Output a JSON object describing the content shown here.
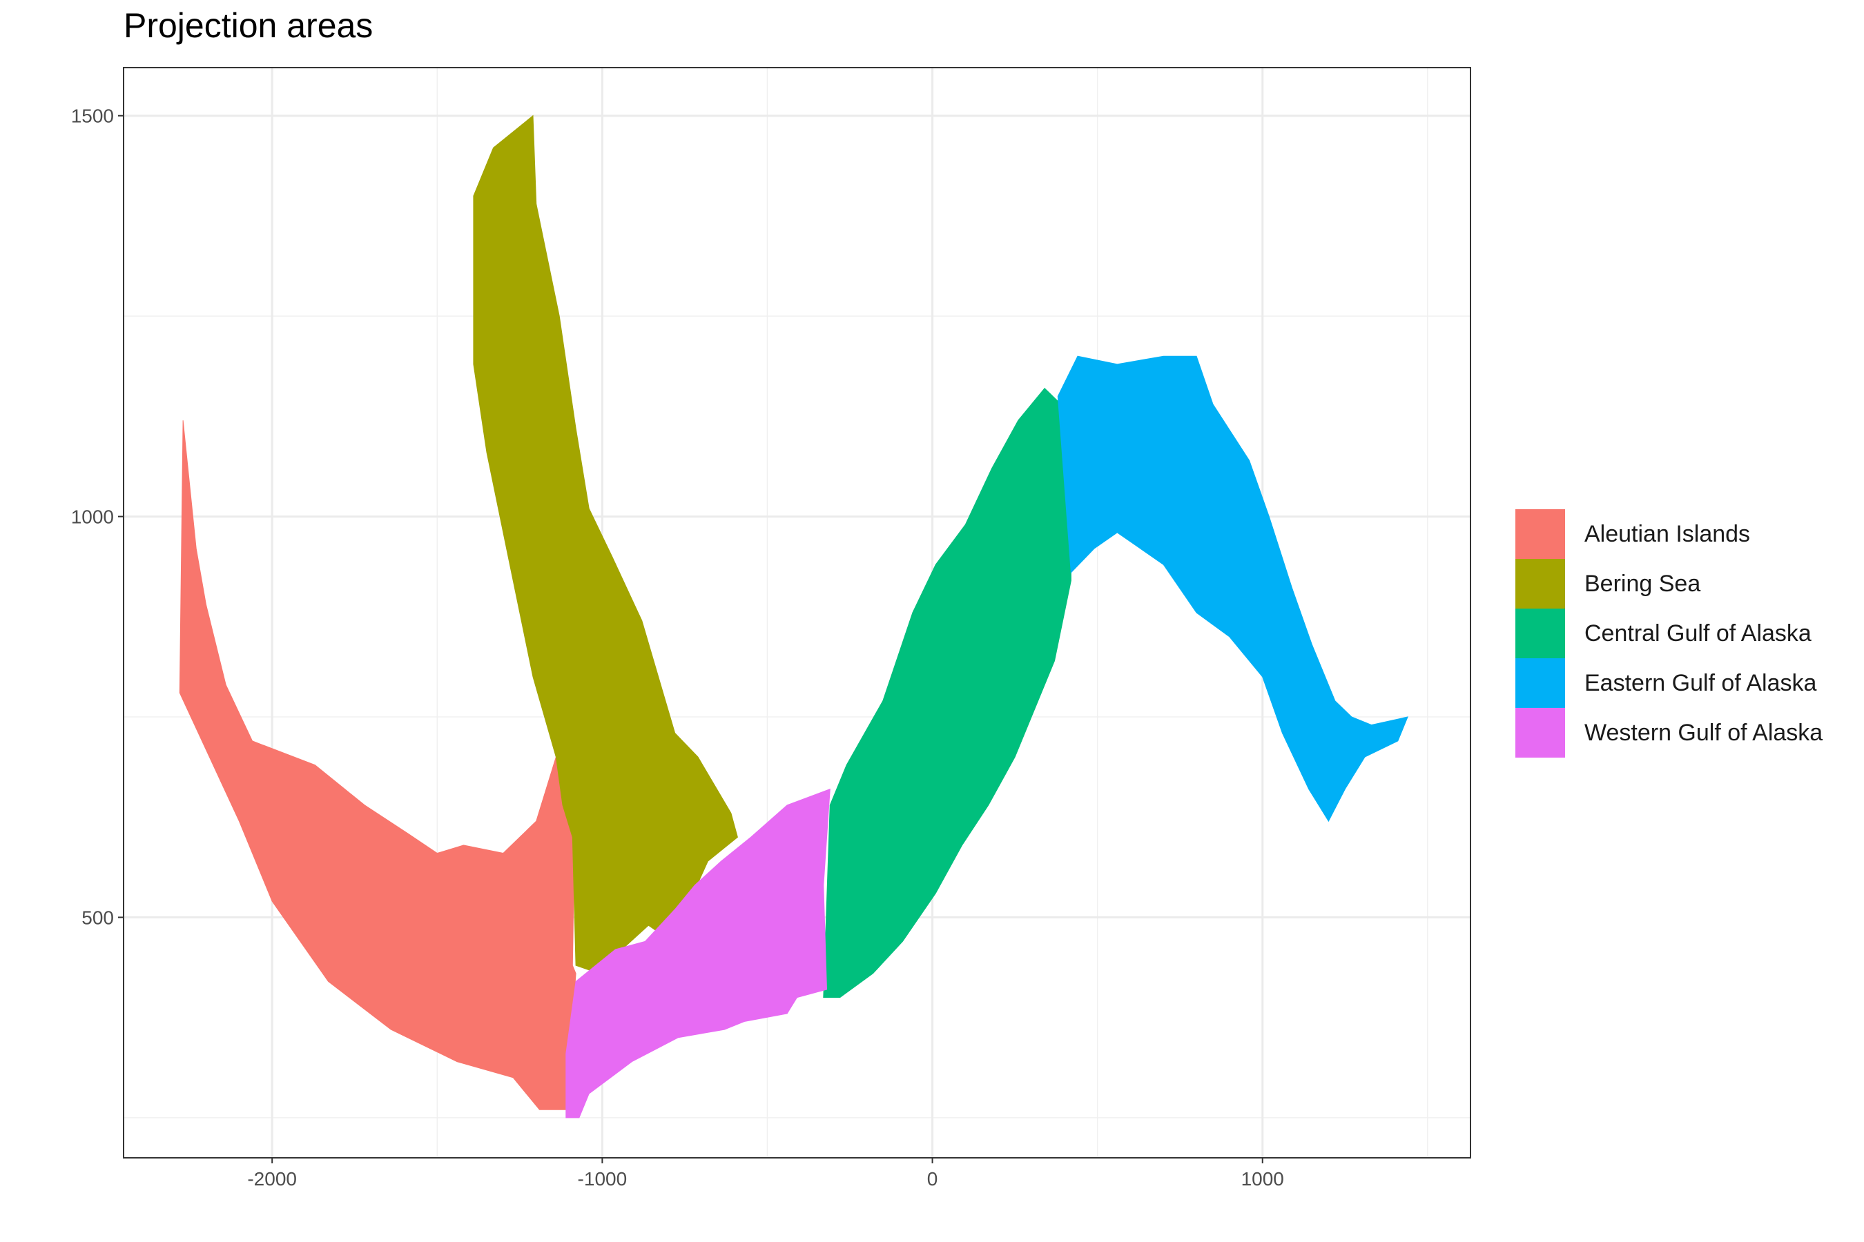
{
  "chart_data": {
    "type": "area",
    "title": "Projection areas",
    "xlabel": "",
    "ylabel": "",
    "xlim": [
      -2450,
      1630
    ],
    "ylim": [
      200,
      1560
    ],
    "x_ticks": [
      -2000,
      -1000,
      0,
      1000
    ],
    "x_tick_labels": [
      "-2000",
      "-1000",
      "0",
      "1000"
    ],
    "y_ticks": [
      500,
      1000,
      1500
    ],
    "y_tick_labels": [
      "500",
      "1000",
      "1500"
    ],
    "grid": true,
    "legend_position": "right",
    "series": [
      {
        "name": "Aleutian Islands",
        "color": "#F8766D",
        "polygon": [
          [
            -2270,
            1120
          ],
          [
            -2230,
            960
          ],
          [
            -2200,
            890
          ],
          [
            -2140,
            790
          ],
          [
            -2060,
            720
          ],
          [
            -1870,
            690
          ],
          [
            -1720,
            640
          ],
          [
            -1590,
            605
          ],
          [
            -1500,
            580
          ],
          [
            -1420,
            590
          ],
          [
            -1300,
            580
          ],
          [
            -1200,
            620
          ],
          [
            -1140,
            700
          ],
          [
            -1110,
            690
          ],
          [
            -1080,
            700
          ],
          [
            -1090,
            440
          ],
          [
            -1080,
            430
          ],
          [
            -1110,
            260
          ],
          [
            -1190,
            260
          ],
          [
            -1270,
            300
          ],
          [
            -1440,
            320
          ],
          [
            -1640,
            360
          ],
          [
            -1830,
            420
          ],
          [
            -2000,
            520
          ],
          [
            -2100,
            620
          ],
          [
            -2190,
            700
          ],
          [
            -2280,
            780
          ]
        ]
      },
      {
        "name": "Bering Sea",
        "color": "#A3A500",
        "polygon": [
          [
            -1390,
            1400
          ],
          [
            -1330,
            1460
          ],
          [
            -1210,
            1500
          ],
          [
            -1200,
            1390
          ],
          [
            -1130,
            1250
          ],
          [
            -1080,
            1110
          ],
          [
            -1040,
            1010
          ],
          [
            -970,
            950
          ],
          [
            -880,
            870
          ],
          [
            -780,
            730
          ],
          [
            -710,
            700
          ],
          [
            -610,
            630
          ],
          [
            -590,
            600
          ],
          [
            -620,
            590
          ],
          [
            -680,
            570
          ],
          [
            -790,
            470
          ],
          [
            -860,
            490
          ],
          [
            -940,
            460
          ],
          [
            -1010,
            430
          ],
          [
            -1080,
            440
          ],
          [
            -1090,
            600
          ],
          [
            -1120,
            640
          ],
          [
            -1140,
            700
          ],
          [
            -1210,
            800
          ],
          [
            -1290,
            960
          ],
          [
            -1350,
            1080
          ],
          [
            -1390,
            1190
          ]
        ]
      },
      {
        "name": "Central Gulf of Alaska",
        "color": "#00BF7D",
        "polygon": [
          [
            -310,
            640
          ],
          [
            -260,
            690
          ],
          [
            -150,
            770
          ],
          [
            -60,
            880
          ],
          [
            10,
            940
          ],
          [
            100,
            990
          ],
          [
            180,
            1060
          ],
          [
            260,
            1120
          ],
          [
            340,
            1160
          ],
          [
            390,
            1140
          ],
          [
            420,
            1090
          ],
          [
            420,
            920
          ],
          [
            370,
            820
          ],
          [
            320,
            770
          ],
          [
            250,
            700
          ],
          [
            170,
            640
          ],
          [
            90,
            590
          ],
          [
            10,
            530
          ],
          [
            -90,
            470
          ],
          [
            -180,
            430
          ],
          [
            -280,
            400
          ],
          [
            -330,
            400
          ]
        ]
      },
      {
        "name": "Eastern Gulf of Alaska",
        "color": "#00B0F6",
        "polygon": [
          [
            380,
            1150
          ],
          [
            440,
            1200
          ],
          [
            560,
            1190
          ],
          [
            700,
            1200
          ],
          [
            800,
            1200
          ],
          [
            850,
            1140
          ],
          [
            960,
            1070
          ],
          [
            1020,
            1000
          ],
          [
            1090,
            910
          ],
          [
            1150,
            840
          ],
          [
            1220,
            770
          ],
          [
            1270,
            750
          ],
          [
            1330,
            740
          ],
          [
            1440,
            750
          ],
          [
            1410,
            720
          ],
          [
            1310,
            700
          ],
          [
            1250,
            660
          ],
          [
            1200,
            620
          ],
          [
            1140,
            660
          ],
          [
            1060,
            730
          ],
          [
            1000,
            800
          ],
          [
            900,
            850
          ],
          [
            800,
            880
          ],
          [
            700,
            940
          ],
          [
            560,
            980
          ],
          [
            490,
            960
          ],
          [
            420,
            930
          ]
        ]
      },
      {
        "name": "Western Gulf of Alaska",
        "color": "#E76BF3",
        "polygon": [
          [
            -1110,
            250
          ],
          [
            -1070,
            250
          ],
          [
            -1040,
            280
          ],
          [
            -910,
            320
          ],
          [
            -770,
            350
          ],
          [
            -630,
            360
          ],
          [
            -570,
            370
          ],
          [
            -440,
            380
          ],
          [
            -410,
            400
          ],
          [
            -320,
            410
          ],
          [
            -330,
            540
          ],
          [
            -310,
            660
          ],
          [
            -440,
            640
          ],
          [
            -550,
            600
          ],
          [
            -640,
            570
          ],
          [
            -720,
            540
          ],
          [
            -780,
            510
          ],
          [
            -870,
            470
          ],
          [
            -960,
            460
          ],
          [
            -1080,
            420
          ],
          [
            -1110,
            330
          ]
        ]
      }
    ]
  },
  "legend": {
    "items": [
      {
        "label": "Aleutian Islands",
        "color": "#F8766D"
      },
      {
        "label": "Bering Sea",
        "color": "#A3A500"
      },
      {
        "label": "Central Gulf of Alaska",
        "color": "#00BF7D"
      },
      {
        "label": "Eastern Gulf of Alaska",
        "color": "#00B0F6"
      },
      {
        "label": "Western Gulf of Alaska",
        "color": "#E76BF3"
      }
    ]
  }
}
